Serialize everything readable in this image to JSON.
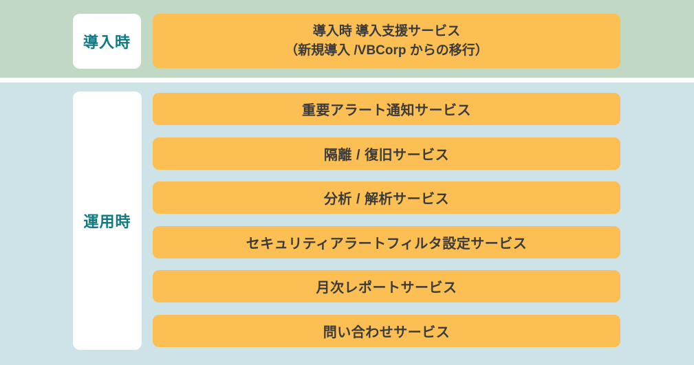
{
  "colors": {
    "green_band": "#c0d8c4",
    "blue_band": "#cee3e8",
    "bar_orange": "#fcbf53",
    "label_teal": "#0d7a81",
    "bar_text": "#3b3b3b",
    "label_bg": "#ffffff"
  },
  "intro_section": {
    "label": "導入時",
    "bar": {
      "line1": "導入時 導入支援サービス",
      "line2": "（新規導入 /VBCorp からの移行）"
    }
  },
  "operation_section": {
    "label": "運用時",
    "bars": [
      "重要アラート通知サービス",
      "隔離 / 復旧サービス",
      "分析 / 解析サービス",
      "セキュリティアラートフィルタ設定サービス",
      "月次レポートサービス",
      "問い合わせサービス"
    ]
  }
}
